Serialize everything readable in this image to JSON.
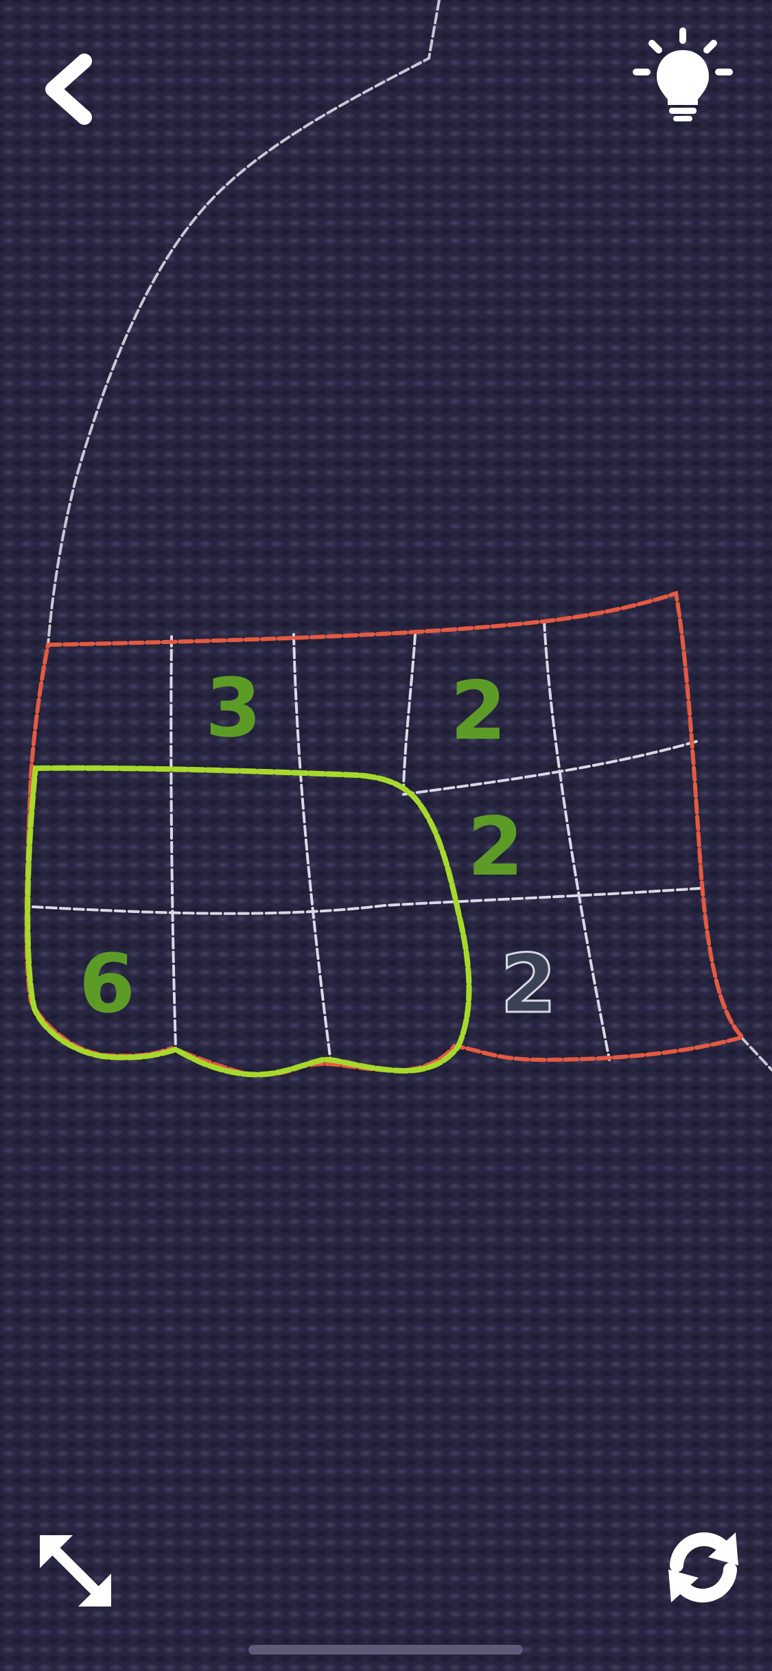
{
  "colors": {
    "background": "#27253f",
    "thread_white": "#d9d8e6",
    "thread_red": "#e35a42",
    "thread_green": "#a7d92c",
    "clue_solved": "#5d9b27",
    "clue_unsolved": "#3b4256"
  },
  "toolbar": {
    "back_icon": "chevron-left-icon",
    "hint_icon": "lightbulb-icon",
    "fullscreen_icon": "expand-arrows-icon",
    "restart_icon": "refresh-icon"
  },
  "board": {
    "clues": [
      {
        "value": "3",
        "row": 1,
        "col": 2,
        "state": "solved"
      },
      {
        "value": "2",
        "row": 1,
        "col": 4,
        "state": "solved"
      },
      {
        "value": "2",
        "row": 2,
        "col": 4,
        "state": "solved"
      },
      {
        "value": "6",
        "row": 3,
        "col": 1,
        "state": "solved"
      },
      {
        "value": "2",
        "row": 3,
        "col": 4,
        "state": "unsolved"
      }
    ],
    "regions": [
      {
        "outline": "red",
        "cells": 14
      },
      {
        "outline": "green",
        "cells": 6
      }
    ]
  }
}
